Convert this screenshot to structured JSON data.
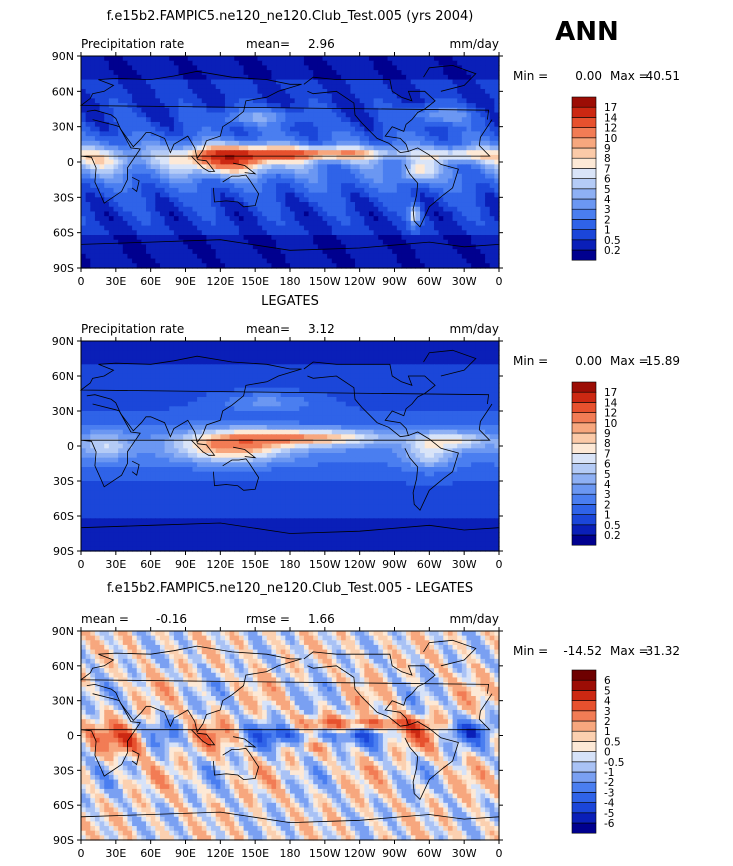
{
  "season_label": "ANN",
  "chart_data": [
    {
      "type": "heatmap",
      "title": "f.e15b2.FAMPIC5.ne120_ne120.Club_Test.005 (yrs 2004)",
      "left_label": "Precipitation rate",
      "stat_label": "mean=",
      "stat_value": "2.96",
      "units": "mm/day",
      "min_label": "Min =",
      "min_value": "0.00",
      "max_label": "Max =",
      "max_value": "40.51",
      "xlabel": "",
      "ylabel": "",
      "xlim": [
        0,
        360
      ],
      "ylim": [
        -90,
        90
      ],
      "x_ticks": [
        "0",
        "30E",
        "60E",
        "90E",
        "120E",
        "150E",
        "180",
        "150W",
        "120W",
        "90W",
        "60W",
        "30W",
        "0"
      ],
      "y_ticks": [
        "90N",
        "60N",
        "30N",
        "0",
        "30S",
        "60S",
        "90S"
      ],
      "colorbar_levels": [
        "0.2",
        "0.5",
        "1",
        "2",
        "3",
        "4",
        "5",
        "6",
        "7",
        "8",
        "9",
        "10",
        "12",
        "14",
        "17"
      ],
      "colorbar_colors": [
        "#00008f",
        "#0a1fb8",
        "#1b46d9",
        "#2f63e8",
        "#4a7ef0",
        "#6b97f2",
        "#8eb0f4",
        "#b4cbf6",
        "#d9e4f8",
        "#fde9d6",
        "#fbcaa8",
        "#f7a77e",
        "#f27c55",
        "#e7512e",
        "#cc2812",
        "#9c0d05"
      ]
    },
    {
      "type": "heatmap",
      "title": "LEGATES",
      "left_label": "Precipitation rate",
      "stat_label": "mean=",
      "stat_value": "3.12",
      "units": "mm/day",
      "min_label": "Min =",
      "min_value": "0.00",
      "max_label": "Max =",
      "max_value": "15.89",
      "xlabel": "",
      "ylabel": "",
      "xlim": [
        0,
        360
      ],
      "ylim": [
        -90,
        90
      ],
      "x_ticks": [
        "0",
        "30E",
        "60E",
        "90E",
        "120E",
        "150E",
        "180",
        "150W",
        "120W",
        "90W",
        "60W",
        "30W",
        "0"
      ],
      "y_ticks": [
        "90N",
        "60N",
        "30N",
        "0",
        "30S",
        "60S",
        "90S"
      ],
      "colorbar_levels": [
        "0.2",
        "0.5",
        "1",
        "2",
        "3",
        "4",
        "5",
        "6",
        "7",
        "8",
        "9",
        "10",
        "12",
        "14",
        "17"
      ],
      "colorbar_colors": [
        "#00008f",
        "#0a1fb8",
        "#1b46d9",
        "#2f63e8",
        "#4a7ef0",
        "#6b97f2",
        "#8eb0f4",
        "#b4cbf6",
        "#d9e4f8",
        "#fde9d6",
        "#fbcaa8",
        "#f7a77e",
        "#f27c55",
        "#e7512e",
        "#cc2812",
        "#9c0d05"
      ]
    },
    {
      "type": "heatmap",
      "title": "f.e15b2.FAMPIC5.ne120_ne120.Club_Test.005 - LEGATES",
      "left_label": "mean =",
      "left_value": "-0.16",
      "stat_label": "rmse =",
      "stat_value": "1.66",
      "units": "mm/day",
      "min_label": "Min =",
      "min_value": "-14.52",
      "max_label": "Max =",
      "max_value": "31.32",
      "xlabel": "",
      "ylabel": "",
      "xlim": [
        0,
        360
      ],
      "ylim": [
        -90,
        90
      ],
      "x_ticks": [
        "0",
        "30E",
        "60E",
        "90E",
        "120E",
        "150E",
        "180",
        "150W",
        "120W",
        "90W",
        "60W",
        "30W",
        "0"
      ],
      "y_ticks": [
        "90N",
        "60N",
        "30N",
        "0",
        "30S",
        "60S",
        "90S"
      ],
      "colorbar_levels": [
        "-6",
        "-5",
        "-4",
        "-3",
        "-2",
        "-1",
        "-0.5",
        "0",
        "0.5",
        "1",
        "2",
        "3",
        "4",
        "5",
        "6"
      ],
      "colorbar_colors": [
        "#00008f",
        "#0a1fb8",
        "#1b46d9",
        "#2f63e8",
        "#4a7ef0",
        "#7aa0f2",
        "#a9c2f5",
        "#d6e2f8",
        "#fde9d6",
        "#fbd0b0",
        "#f7a77e",
        "#f27c55",
        "#e7512e",
        "#cc2812",
        "#9c0d05",
        "#6e0000"
      ]
    }
  ]
}
